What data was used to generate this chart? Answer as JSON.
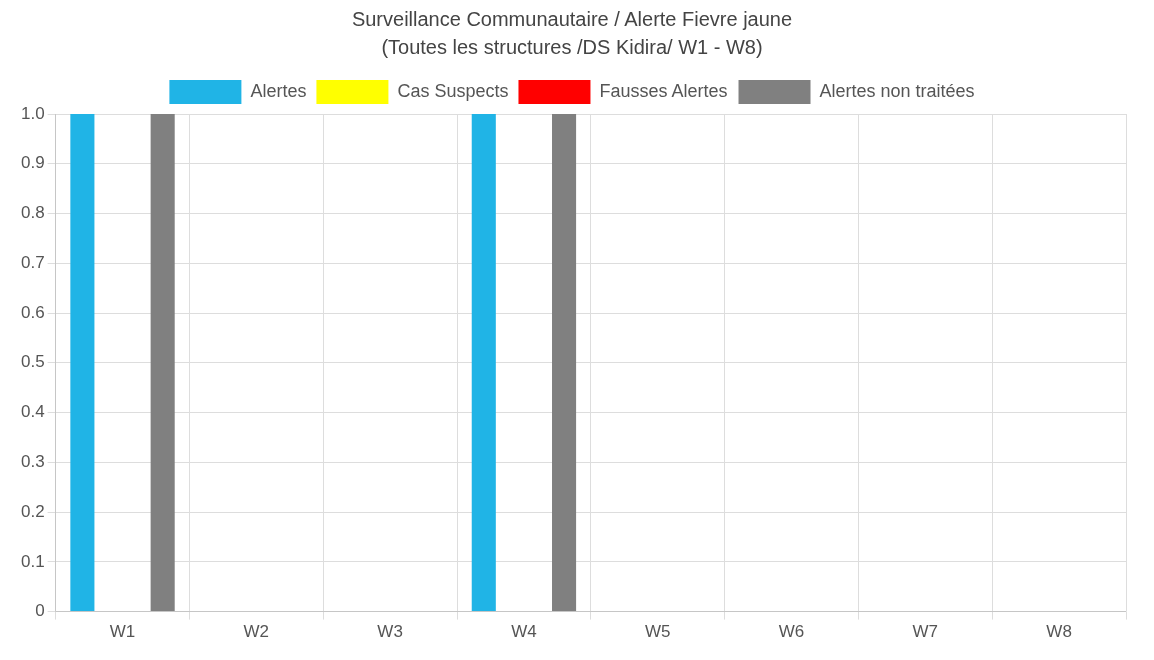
{
  "chart_data": {
    "type": "bar",
    "title": "Surveillance Communautaire / Alerte Fievre jaune",
    "subtitle": "(Toutes les structures /DS Kidira/ W1 - W8)",
    "categories": [
      "W1",
      "W2",
      "W3",
      "W4",
      "W5",
      "W6",
      "W7",
      "W8"
    ],
    "series": [
      {
        "name": "Alertes",
        "color": "#20b4e6",
        "values": [
          1,
          0,
          0,
          1,
          0,
          0,
          0,
          0
        ]
      },
      {
        "name": "Cas Suspects",
        "color": "#ffff00",
        "values": [
          0,
          0,
          0,
          0,
          0,
          0,
          0,
          0
        ]
      },
      {
        "name": "Fausses Alertes",
        "color": "#ff0000",
        "values": [
          0,
          0,
          0,
          0,
          0,
          0,
          0,
          0
        ]
      },
      {
        "name": "Alertes non traitées",
        "color": "#808080",
        "values": [
          1,
          0,
          0,
          1,
          0,
          0,
          0,
          0
        ]
      }
    ],
    "ylim": [
      0,
      1
    ],
    "yticks": [
      0,
      0.1,
      0.2,
      0.3,
      0.4,
      0.5,
      0.6,
      0.7,
      0.8,
      0.9,
      {
        "value": 1,
        "label": "1.0"
      }
    ],
    "grid": true,
    "legend": "top"
  }
}
